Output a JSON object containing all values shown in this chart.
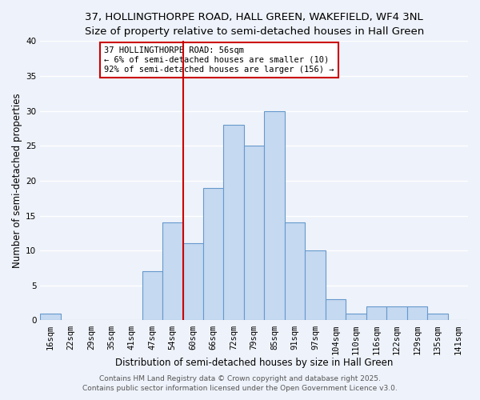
{
  "title_line1": "37, HOLLINGTHORPE ROAD, HALL GREEN, WAKEFIELD, WF4 3NL",
  "title_line2": "Size of property relative to semi-detached houses in Hall Green",
  "xlabel": "Distribution of semi-detached houses by size in Hall Green",
  "ylabel": "Number of semi-detached properties",
  "bar_labels": [
    "16sqm",
    "22sqm",
    "29sqm",
    "35sqm",
    "41sqm",
    "47sqm",
    "54sqm",
    "60sqm",
    "66sqm",
    "72sqm",
    "79sqm",
    "85sqm",
    "91sqm",
    "97sqm",
    "104sqm",
    "110sqm",
    "116sqm",
    "122sqm",
    "129sqm",
    "135sqm",
    "141sqm"
  ],
  "bar_values": [
    1,
    0,
    0,
    0,
    0,
    7,
    14,
    11,
    19,
    28,
    25,
    30,
    14,
    10,
    3,
    1,
    2,
    2,
    2,
    1,
    0
  ],
  "bar_color": "#c5d9f1",
  "bar_edge_color": "#6699cc",
  "vline_x": 6.5,
  "vline_color": "#cc0000",
  "ylim": [
    0,
    40
  ],
  "yticks": [
    0,
    5,
    10,
    15,
    20,
    25,
    30,
    35,
    40
  ],
  "annotation_title": "37 HOLLINGTHORPE ROAD: 56sqm",
  "annotation_line1": "← 6% of semi-detached houses are smaller (10)",
  "annotation_line2": "92% of semi-detached houses are larger (156) →",
  "footer1": "Contains HM Land Registry data © Crown copyright and database right 2025.",
  "footer2": "Contains public sector information licensed under the Open Government Licence v3.0.",
  "background_color": "#eef2fa",
  "grid_color": "#ffffff",
  "title_fontsize": 9.5,
  "subtitle_fontsize": 8.5,
  "axis_label_fontsize": 8.5,
  "tick_fontsize": 7.5,
  "annotation_fontsize": 7.5,
  "footer_fontsize": 6.5
}
